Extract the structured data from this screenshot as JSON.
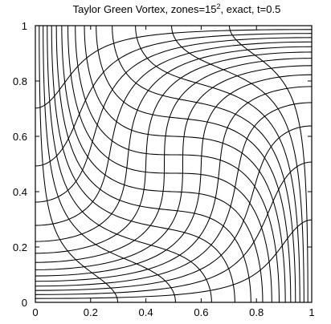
{
  "chart_data": {
    "type": "mesh",
    "title": {
      "prefix": "Taylor Green Vortex, zones=15",
      "superscript": "2",
      "suffix": ", exact, t=0.5"
    },
    "xlabel": "",
    "ylabel": "",
    "zones": 15,
    "time": 0.5,
    "xlim": [
      0,
      1
    ],
    "ylim": [
      0,
      1
    ],
    "x_ticks": [
      0,
      0.2,
      0.4,
      0.6,
      0.8,
      1
    ],
    "y_ticks": [
      0,
      0.2,
      0.4,
      0.6,
      0.8,
      1
    ],
    "x_tick_labels": [
      "0",
      "0.2",
      "0.4",
      "0.6",
      "0.8",
      "1"
    ],
    "y_tick_labels": [
      "0",
      "0.2",
      "0.4",
      "0.6",
      "0.8",
      "1"
    ],
    "grid": false,
    "line_color": "#000000"
  }
}
